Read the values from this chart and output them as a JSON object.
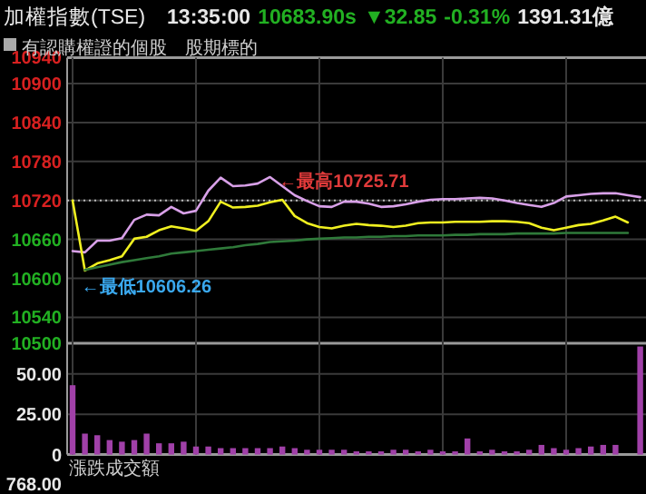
{
  "chart_data": [
    {
      "type": "line",
      "title": "加權指數(TSE)",
      "subtitle": "13:35:00",
      "annotations": [
        "10683.90s",
        "▼32.85",
        "-0.31%",
        "1391.31億",
        "有認購權證的個股",
        "股期標的",
        "←最高10725.71",
        "←最低10606.26"
      ],
      "categories": [
        null,
        null,
        null,
        null,
        null,
        null,
        null,
        null,
        null,
        null,
        null,
        null,
        null,
        null,
        null,
        null,
        null,
        null,
        null,
        null,
        null,
        null,
        null,
        null,
        null,
        null,
        null,
        null,
        null,
        null,
        null,
        null,
        null,
        null,
        null,
        null,
        null,
        null,
        null,
        null,
        null,
        null,
        null,
        null,
        null,
        null,
        null
      ],
      "ylim": [
        10500,
        10940
      ],
      "yticks": [
        10500,
        10540,
        10600,
        10660,
        10720,
        10780,
        10840,
        10900,
        10940
      ],
      "grid": true,
      "ref_lines": [
        {
          "axis": "y",
          "value": 10720,
          "line_style": "dotted",
          "color": "#bbbbbb"
        }
      ],
      "series": [
        {
          "color": "#d8a0e8",
          "values": [
            10642,
            10640,
            10658,
            10658,
            10662,
            10690,
            10698,
            10697,
            10710,
            10700,
            10704,
            10735,
            10755,
            10742,
            10743,
            10746,
            10756,
            10742,
            10728,
            10719,
            10711,
            10710,
            10718,
            10718,
            10715,
            10710,
            10711,
            10714,
            10718,
            10721,
            10722,
            10722,
            10723,
            10724,
            10723,
            10720,
            10716,
            10713,
            10710,
            10716,
            10726,
            10728,
            10730,
            10731,
            10731,
            10728,
            10725
          ]
        },
        {
          "color": "#f0f020",
          "values": [
            10720,
            10612,
            10623,
            10628,
            10634,
            10661,
            10664,
            10674,
            10680,
            10677,
            10673,
            10688,
            10718,
            10709,
            10710,
            10712,
            10717,
            10721,
            10696,
            10685,
            10679,
            10677,
            10681,
            10684,
            10682,
            10681,
            10679,
            10681,
            10685,
            10686,
            10686,
            10687,
            10687,
            10687,
            10688,
            10688,
            10687,
            10685,
            10678,
            10674,
            10678,
            10682,
            10684,
            10689,
            10695,
            10686,
            null
          ]
        },
        {
          "color": "#2f7a3a",
          "values": [
            null,
            10613,
            10617,
            10621,
            10625,
            10628,
            10631,
            10634,
            10638,
            10640,
            10642,
            10644,
            10646,
            10648,
            10651,
            10653,
            10656,
            10657,
            10658,
            10660,
            10661,
            10662,
            10663,
            10663,
            10664,
            10664,
            10665,
            10665,
            10666,
            10666,
            10666,
            10667,
            10667,
            10668,
            10668,
            10668,
            10669,
            10669,
            10669,
            10669,
            10670,
            10670,
            10670,
            10670,
            10670,
            10670,
            null
          ]
        }
      ]
    },
    {
      "type": "bar",
      "color": "#a040a8",
      "annotations": [
        "漲跌成交額",
        "768.00"
      ],
      "categories": [
        null,
        null,
        null,
        null,
        null,
        null,
        null,
        null,
        null,
        null,
        null,
        null,
        null,
        null,
        null,
        null,
        null,
        null,
        null,
        null,
        null,
        null,
        null,
        null,
        null,
        null,
        null,
        null,
        null,
        null,
        null,
        null,
        null,
        null,
        null,
        null,
        null,
        null,
        null,
        null,
        null,
        null,
        null,
        null,
        null,
        null,
        null
      ],
      "ylim": [
        0,
        69
      ],
      "yticks": [
        0,
        {
          "value": 25,
          "label": "25.00"
        },
        {
          "value": 50,
          "label": "50.00"
        }
      ],
      "grid": true,
      "values": [
        43,
        13,
        12,
        9,
        8,
        9,
        13,
        7,
        7,
        8,
        5,
        5,
        4,
        4,
        4,
        4,
        4,
        5,
        4,
        3,
        3,
        3,
        3,
        2,
        2,
        2,
        3,
        3,
        2,
        3,
        2,
        2,
        10,
        2,
        3,
        2,
        2,
        3,
        6,
        4,
        3,
        4,
        5,
        6,
        6,
        null,
        67
      ]
    }
  ]
}
